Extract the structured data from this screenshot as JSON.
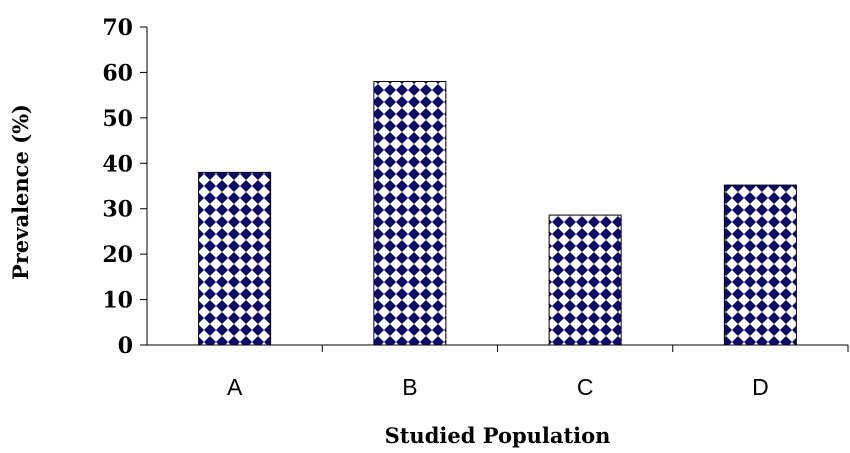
{
  "chart_data": {
    "type": "bar",
    "title": "",
    "xlabel": "Studied Population",
    "ylabel": "Prevalence (%)",
    "categories": [
      "A",
      "B",
      "C",
      "D"
    ],
    "values": [
      38,
      58,
      28.6,
      35.2
    ],
    "ylim": [
      0,
      70
    ],
    "yticks": [
      "0",
      "10",
      "20",
      "30",
      "40",
      "50",
      "60",
      "70"
    ],
    "grid": false,
    "legend": "none",
    "bar_fill": "checker pattern",
    "colors": {
      "bar_pattern_fg": "#0a0a6e",
      "bar_pattern_bg": "#ffffff",
      "bar_outline": "#000000",
      "axis": "#000000"
    }
  }
}
